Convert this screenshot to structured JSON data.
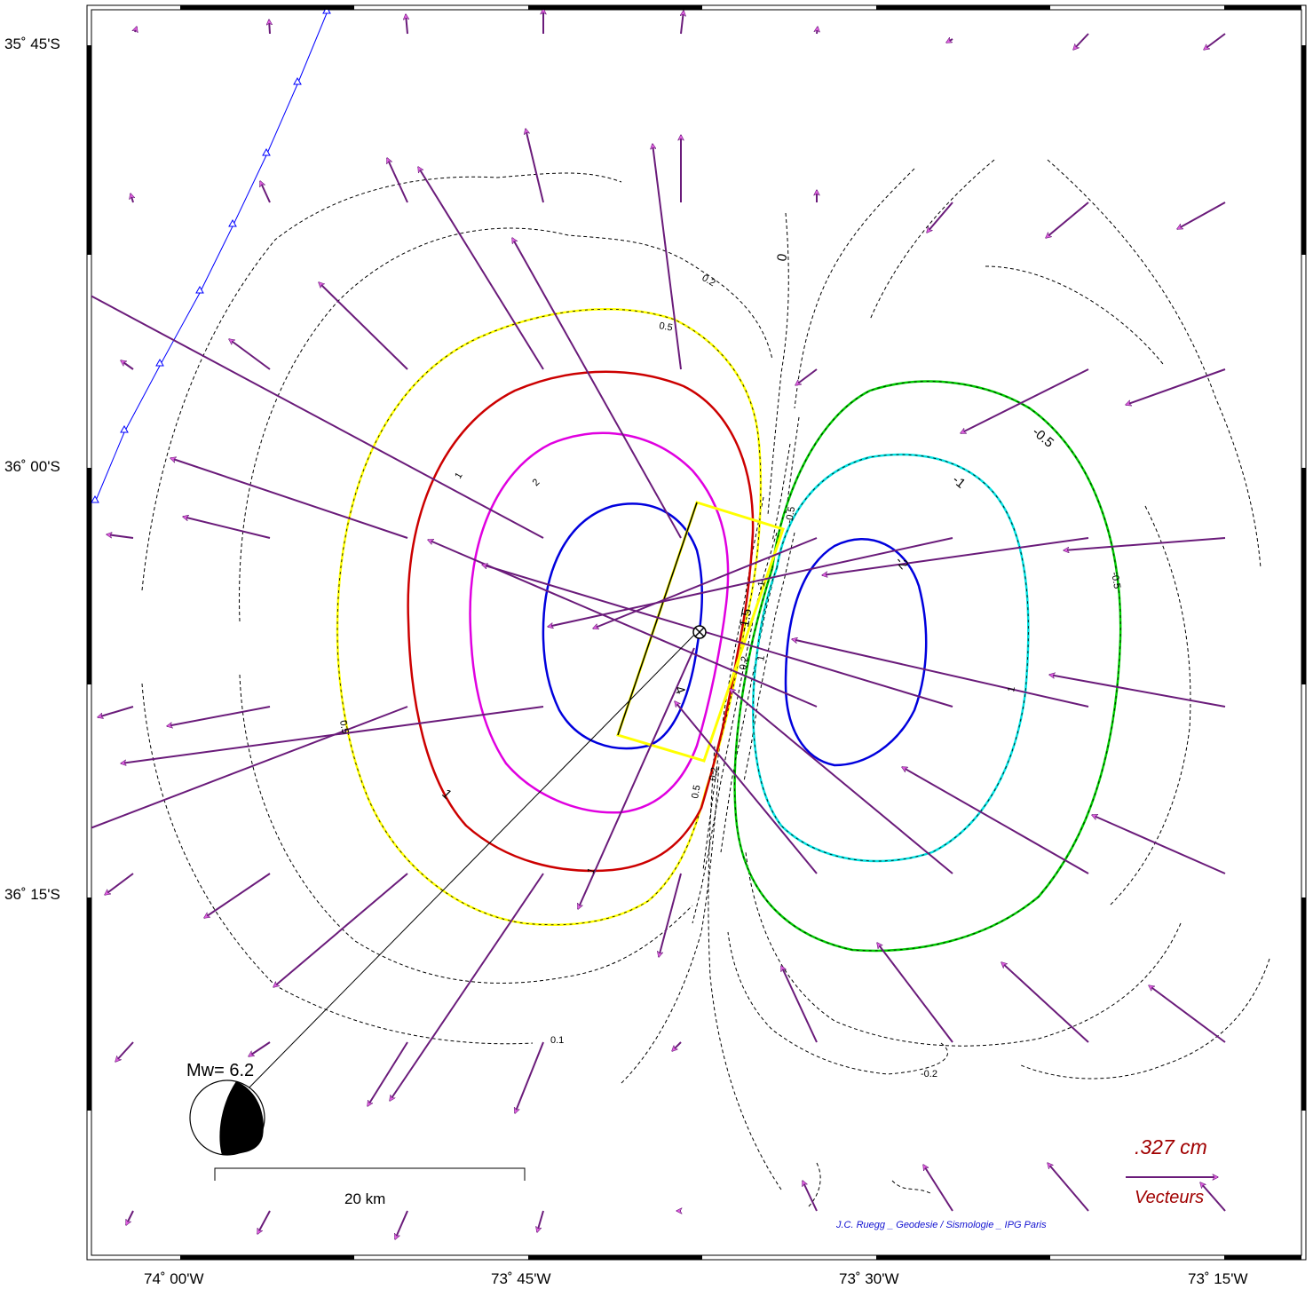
{
  "axes": {
    "lat_ticks": [
      "35˚ 45'S",
      "36˚ 00'S",
      "36˚ 15'S"
    ],
    "lon_ticks": [
      "74˚ 00'W",
      "73˚ 45'W",
      "73˚ 30'W",
      "73˚ 15'W"
    ]
  },
  "earthquake": {
    "magnitude_label": "Mw= 6.2"
  },
  "scale_bar": {
    "label": "20 km"
  },
  "reference_vector": {
    "value": ".327  cm",
    "label": "Vecteurs"
  },
  "credit": "J.C. Ruegg _ Geodesie / Sismologie _ IPG Paris",
  "contour_labels": {
    "zero": "0",
    "p02": "0.2",
    "p05": "0.5",
    "p1": "1",
    "p2": "2",
    "p4": "4",
    "p01": "0.1",
    "m05": "-0.5",
    "m1": "-1",
    "m2": "-2",
    "m02": "-0.2",
    "m15": "-1.5"
  },
  "colors": {
    "contour_05": "#ffff00",
    "contour_1": "#cc0000",
    "contour_2": "#e000e0",
    "contour_4": "#0000dd",
    "contour_m05": "#00cc00",
    "contour_m1": "#00e0e0",
    "contour_m2": "#0000dd",
    "vectors": "#6a1b7a",
    "arrowheads": "#e060e0",
    "trench": "#0000ff",
    "fault_plane": "#ffff00",
    "reference_text": "#a00000",
    "credit_text": "#1010d0"
  },
  "icons": [
    "epicenter-icon",
    "beachball-icon",
    "arrow-icon"
  ]
}
